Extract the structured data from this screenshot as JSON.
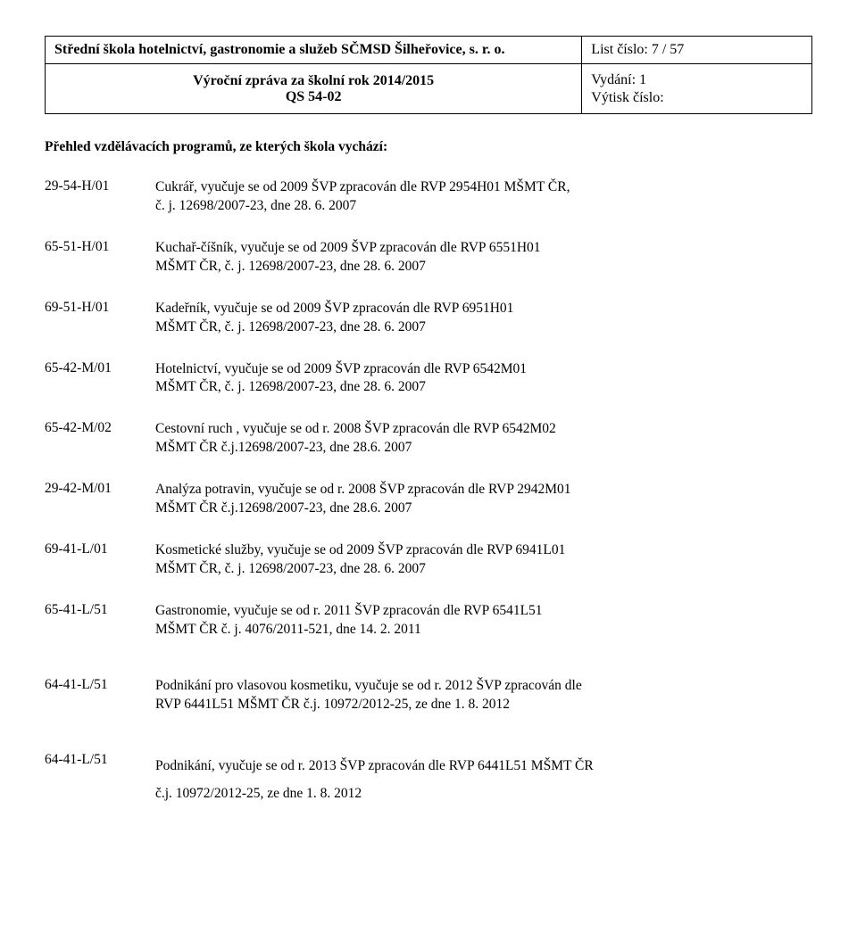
{
  "header": {
    "school_name": "Střední škola hotelnictví, gastronomie a služeb SČMSD Šilheřovice, s. r. o.",
    "page_number": "List číslo: 7 / 57",
    "report_title_line1": "Výroční zpráva za školní rok 2014/2015",
    "report_title_line2": "QS 54-02",
    "vydani": "Vydání: 1",
    "vytisk": "Výtisk číslo:"
  },
  "section_heading": "Přehled vzdělávacích programů, ze kterých škola vychází:",
  "entries": [
    {
      "code": "29-54-H/01",
      "line1": "Cukrář, vyučuje se od 2009 ŠVP zpracován dle RVP 2954H01 MŠMT ČR,",
      "line2": "č. j. 12698/2007-23, dne 28. 6. 2007"
    },
    {
      "code": "65-51-H/01",
      "line1": "Kuchař-číšník, vyučuje se od 2009 ŠVP zpracován dle RVP 6551H01",
      "line2": "MŠMT ČR, č. j. 12698/2007-23, dne 28. 6. 2007"
    },
    {
      "code": "69-51-H/01",
      "line1": "Kadeřník, vyučuje se od 2009 ŠVP zpracován dle RVP 6951H01",
      "line2": "MŠMT ČR, č. j. 12698/2007-23, dne 28. 6. 2007"
    },
    {
      "code": "65-42-M/01",
      "line1": "Hotelnictví, vyučuje se od 2009 ŠVP zpracován dle RVP 6542M01",
      "line2": "MŠMT ČR, č. j. 12698/2007-23, dne 28. 6. 2007"
    },
    {
      "code": "65-42-M/02",
      "line1": "Cestovní ruch , vyučuje se od r. 2008 ŠVP zpracován dle RVP 6542M02",
      "line2": "MŠMT ČR č.j.12698/2007-23, dne 28.6. 2007"
    },
    {
      "code": "29-42-M/01",
      "line1": "Analýza potravin, vyučuje se od r. 2008 ŠVP zpracován dle RVP 2942M01",
      "line2": "MŠMT ČR č.j.12698/2007-23, dne 28.6. 2007"
    },
    {
      "code": "69-41-L/01",
      "line1": "Kosmetické služby, vyučuje se od 2009 ŠVP zpracován dle RVP 6941L01",
      "line2": "MŠMT ČR, č. j. 12698/2007-23, dne 28. 6. 2007"
    },
    {
      "code": "65-41-L/51",
      "line1": "Gastronomie, vyučuje se od r. 2011 ŠVP zpracován dle RVP 6541L51",
      "line2": "MŠMT ČR č. j.  4076/2011-521, dne 14. 2. 2011"
    },
    {
      "code": "64-41-L/51",
      "line1": "Podnikání pro vlasovou kosmetiku, vyučuje se od r. 2012 ŠVP zpracován dle",
      "line2": "RVP 6441L51 MŠMT ČR č.j. 10972/2012-25, ze dne 1. 8. 2012"
    }
  ],
  "final_entry": {
    "code": "64-41-L/51",
    "line1": "Podnikání, vyučuje se od r. 2013 ŠVP zpracován dle RVP 6441L51 MŠMT ČR",
    "line2": "č.j. 10972/2012-25, ze dne 1. 8. 2012"
  }
}
